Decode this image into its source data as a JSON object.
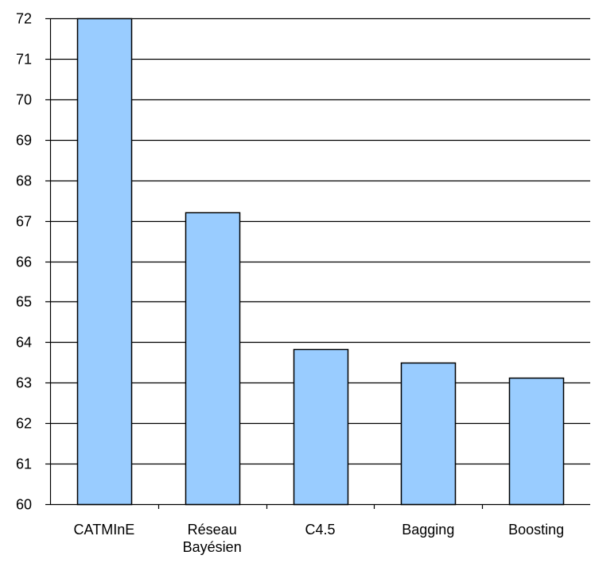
{
  "chart_data": {
    "type": "bar",
    "categories": [
      [
        "CATMInE"
      ],
      [
        "Réseau",
        "Bayésien"
      ],
      [
        "C4.5"
      ],
      [
        "Bagging"
      ],
      [
        "Boosting"
      ]
    ],
    "values": [
      72,
      67.2,
      63.83,
      63.5,
      63.12
    ],
    "ylim": [
      60,
      72
    ],
    "yticks": [
      "60",
      "61",
      "62",
      "63",
      "64",
      "65",
      "66",
      "67",
      "68",
      "69",
      "70",
      "71",
      "72"
    ],
    "title": "",
    "xlabel": "",
    "ylabel": "",
    "grid": true,
    "legend": "none",
    "bar_color": "#99ccff",
    "bar_stroke": "#000000",
    "grid_color": "#000000"
  }
}
